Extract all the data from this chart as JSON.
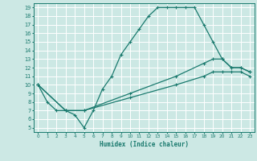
{
  "xlabel": "Humidex (Indice chaleur)",
  "bg_color": "#cce8e4",
  "grid_color": "#ffffff",
  "line_color": "#1a7a6e",
  "xlim": [
    -0.5,
    23.5
  ],
  "ylim": [
    4.5,
    19.5
  ],
  "xticks": [
    0,
    1,
    2,
    3,
    4,
    5,
    6,
    7,
    8,
    9,
    10,
    11,
    12,
    13,
    14,
    15,
    16,
    17,
    18,
    19,
    20,
    21,
    22,
    23
  ],
  "yticks": [
    5,
    6,
    7,
    8,
    9,
    10,
    11,
    12,
    13,
    14,
    15,
    16,
    17,
    18,
    19
  ],
  "lines": [
    {
      "x": [
        0,
        1,
        2,
        3,
        4,
        5,
        6,
        7,
        8,
        9,
        10,
        11,
        12,
        13,
        14,
        15,
        16,
        17,
        18,
        19,
        20,
        21,
        22,
        23
      ],
      "y": [
        10,
        8,
        7,
        7,
        6.5,
        5,
        7,
        9.5,
        11,
        13.5,
        15,
        16.5,
        18,
        19,
        19,
        19,
        19,
        19,
        17,
        15,
        13,
        12,
        12,
        11.5
      ]
    },
    {
      "x": [
        0,
        3,
        5,
        10,
        15,
        18,
        19,
        20,
        21,
        22,
        23
      ],
      "y": [
        10,
        7,
        7,
        9,
        11,
        12.5,
        13,
        13,
        12,
        12,
        11.5
      ]
    },
    {
      "x": [
        0,
        3,
        5,
        10,
        15,
        18,
        19,
        20,
        21,
        22,
        23
      ],
      "y": [
        10,
        7,
        7,
        8.5,
        10,
        11,
        11.5,
        11.5,
        11.5,
        11.5,
        11
      ]
    }
  ],
  "marker": "+",
  "markersize": 3.5,
  "linewidth": 0.9
}
